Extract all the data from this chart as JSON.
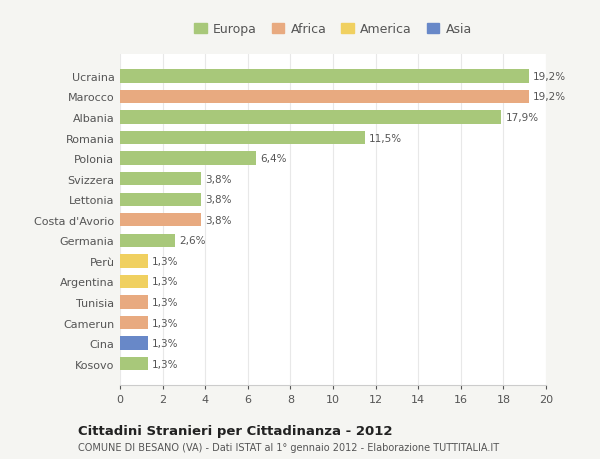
{
  "countries": [
    "Ucraina",
    "Marocco",
    "Albania",
    "Romania",
    "Polonia",
    "Svizzera",
    "Lettonia",
    "Costa d'Avorio",
    "Germania",
    "Perù",
    "Argentina",
    "Tunisia",
    "Camerun",
    "Cina",
    "Kosovo"
  ],
  "values": [
    19.2,
    19.2,
    17.9,
    11.5,
    6.4,
    3.8,
    3.8,
    3.8,
    2.6,
    1.3,
    1.3,
    1.3,
    1.3,
    1.3,
    1.3
  ],
  "labels": [
    "19,2%",
    "19,2%",
    "17,9%",
    "11,5%",
    "6,4%",
    "3,8%",
    "3,8%",
    "3,8%",
    "2,6%",
    "1,3%",
    "1,3%",
    "1,3%",
    "1,3%",
    "1,3%",
    "1,3%"
  ],
  "continents": [
    "Europa",
    "Africa",
    "Europa",
    "Europa",
    "Europa",
    "Europa",
    "Europa",
    "Africa",
    "Europa",
    "America",
    "America",
    "Africa",
    "Africa",
    "Asia",
    "Europa"
  ],
  "colors": {
    "Europa": "#a8c87a",
    "Africa": "#e8aa80",
    "America": "#f0d060",
    "Asia": "#6888c8"
  },
  "legend_order": [
    "Europa",
    "Africa",
    "America",
    "Asia"
  ],
  "title": "Cittadini Stranieri per Cittadinanza - 2012",
  "subtitle": "COMUNE DI BESANO (VA) - Dati ISTAT al 1° gennaio 2012 - Elaborazione TUTTITALIA.IT",
  "xlim": [
    0,
    20
  ],
  "xticks": [
    0,
    2,
    4,
    6,
    8,
    10,
    12,
    14,
    16,
    18,
    20
  ],
  "plot_bg": "#ffffff",
  "fig_bg": "#f5f5f2",
  "grid_color": "#e8e8e8",
  "bar_height": 0.65,
  "text_color": "#555555",
  "title_color": "#222222"
}
